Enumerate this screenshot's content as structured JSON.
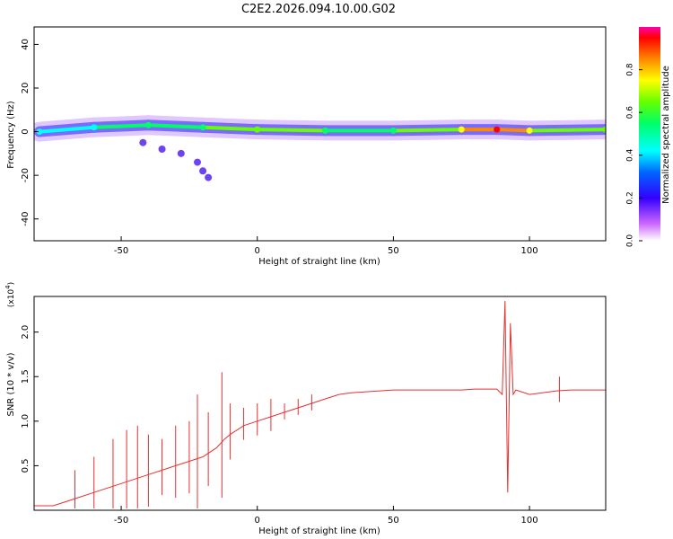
{
  "title": "C2E2.2026.094.10.00.G02",
  "chart_data": [
    {
      "type": "heatmap",
      "name": "spectrogram",
      "xlabel": "Height of straight line (km)",
      "ylabel": "Frequency (Hz)",
      "xlim": [
        -82,
        128
      ],
      "ylim": [
        -50,
        48
      ],
      "xticks": [
        -50,
        0,
        50,
        100
      ],
      "yticks": [
        -40,
        -20,
        0,
        20,
        40
      ],
      "colorbar": {
        "label": "Normalized spectral amplitude",
        "range": [
          0,
          1
        ],
        "ticks": [
          "0.0",
          "0.2",
          "0.4",
          "0.6",
          "0.8"
        ]
      },
      "ridge": [
        {
          "x": -80,
          "freq": 0,
          "amp": 0.35
        },
        {
          "x": -60,
          "freq": 2,
          "amp": 0.4
        },
        {
          "x": -40,
          "freq": 3,
          "amp": 0.45
        },
        {
          "x": -20,
          "freq": 2,
          "amp": 0.55
        },
        {
          "x": 0,
          "freq": 1,
          "amp": 0.6
        },
        {
          "x": 25,
          "freq": 0.5,
          "amp": 0.55
        },
        {
          "x": 50,
          "freq": 0.5,
          "amp": 0.55
        },
        {
          "x": 75,
          "freq": 1,
          "amp": 0.7
        },
        {
          "x": 88,
          "freq": 1,
          "amp": 0.95
        },
        {
          "x": 100,
          "freq": 0.5,
          "amp": 0.7
        },
        {
          "x": 128,
          "freq": 1,
          "amp": 0.6
        }
      ],
      "scatter_tail": [
        {
          "x": -42,
          "freq": -5
        },
        {
          "x": -35,
          "freq": -8
        },
        {
          "x": -28,
          "freq": -10
        },
        {
          "x": -22,
          "freq": -14
        },
        {
          "x": -20,
          "freq": -18
        },
        {
          "x": -18,
          "freq": -21
        }
      ]
    },
    {
      "type": "line",
      "name": "snr",
      "xlabel": "Height of straight line (km)",
      "ylabel": "SNR (10 * v/v)",
      "y_multiplier": "(x10",
      "y_exponent": "4",
      "xlim": [
        -82,
        128
      ],
      "ylim": [
        0,
        2.4
      ],
      "xticks": [
        -50,
        0,
        50,
        100
      ],
      "yticks": [
        0.5,
        1.0,
        1.5,
        2.0
      ],
      "series": [
        {
          "name": "SNR",
          "color": "#e83030",
          "x": [
            -82,
            -75,
            -70,
            -65,
            -60,
            -55,
            -50,
            -45,
            -40,
            -35,
            -30,
            -25,
            -20,
            -15,
            -12,
            -10,
            -5,
            0,
            5,
            10,
            15,
            20,
            25,
            30,
            35,
            40,
            45,
            50,
            55,
            60,
            65,
            70,
            75,
            80,
            85,
            88,
            90,
            91,
            92,
            93,
            94,
            95,
            100,
            105,
            110,
            115,
            120,
            128
          ],
          "y": [
            0.05,
            0.05,
            0.1,
            0.15,
            0.2,
            0.25,
            0.3,
            0.35,
            0.4,
            0.45,
            0.5,
            0.55,
            0.6,
            0.7,
            0.8,
            0.85,
            0.95,
            1.0,
            1.05,
            1.1,
            1.15,
            1.2,
            1.25,
            1.3,
            1.32,
            1.33,
            1.34,
            1.35,
            1.35,
            1.35,
            1.35,
            1.35,
            1.35,
            1.36,
            1.36,
            1.36,
            1.3,
            2.35,
            0.2,
            2.1,
            1.3,
            1.35,
            1.3,
            1.32,
            1.34,
            1.35,
            1.35,
            1.35
          ]
        }
      ],
      "spikes": [
        {
          "x": -67,
          "y": 0.45
        },
        {
          "x": -60,
          "y": 0.6
        },
        {
          "x": -53,
          "y": 0.8
        },
        {
          "x": -48,
          "y": 0.9
        },
        {
          "x": -44,
          "y": 0.95
        },
        {
          "x": -40,
          "y": 0.85
        },
        {
          "x": -35,
          "y": 0.8
        },
        {
          "x": -30,
          "y": 0.95
        },
        {
          "x": -25,
          "y": 1.0
        },
        {
          "x": -22,
          "y": 1.3
        },
        {
          "x": -18,
          "y": 1.1
        },
        {
          "x": -13,
          "y": 1.55
        },
        {
          "x": -10,
          "y": 1.2
        },
        {
          "x": -5,
          "y": 1.15
        },
        {
          "x": 0,
          "y": 1.2
        },
        {
          "x": 5,
          "y": 1.25
        },
        {
          "x": 10,
          "y": 1.2
        },
        {
          "x": 15,
          "y": 1.25
        },
        {
          "x": 20,
          "y": 1.3
        },
        {
          "x": 111,
          "y": 1.5
        }
      ]
    }
  ]
}
